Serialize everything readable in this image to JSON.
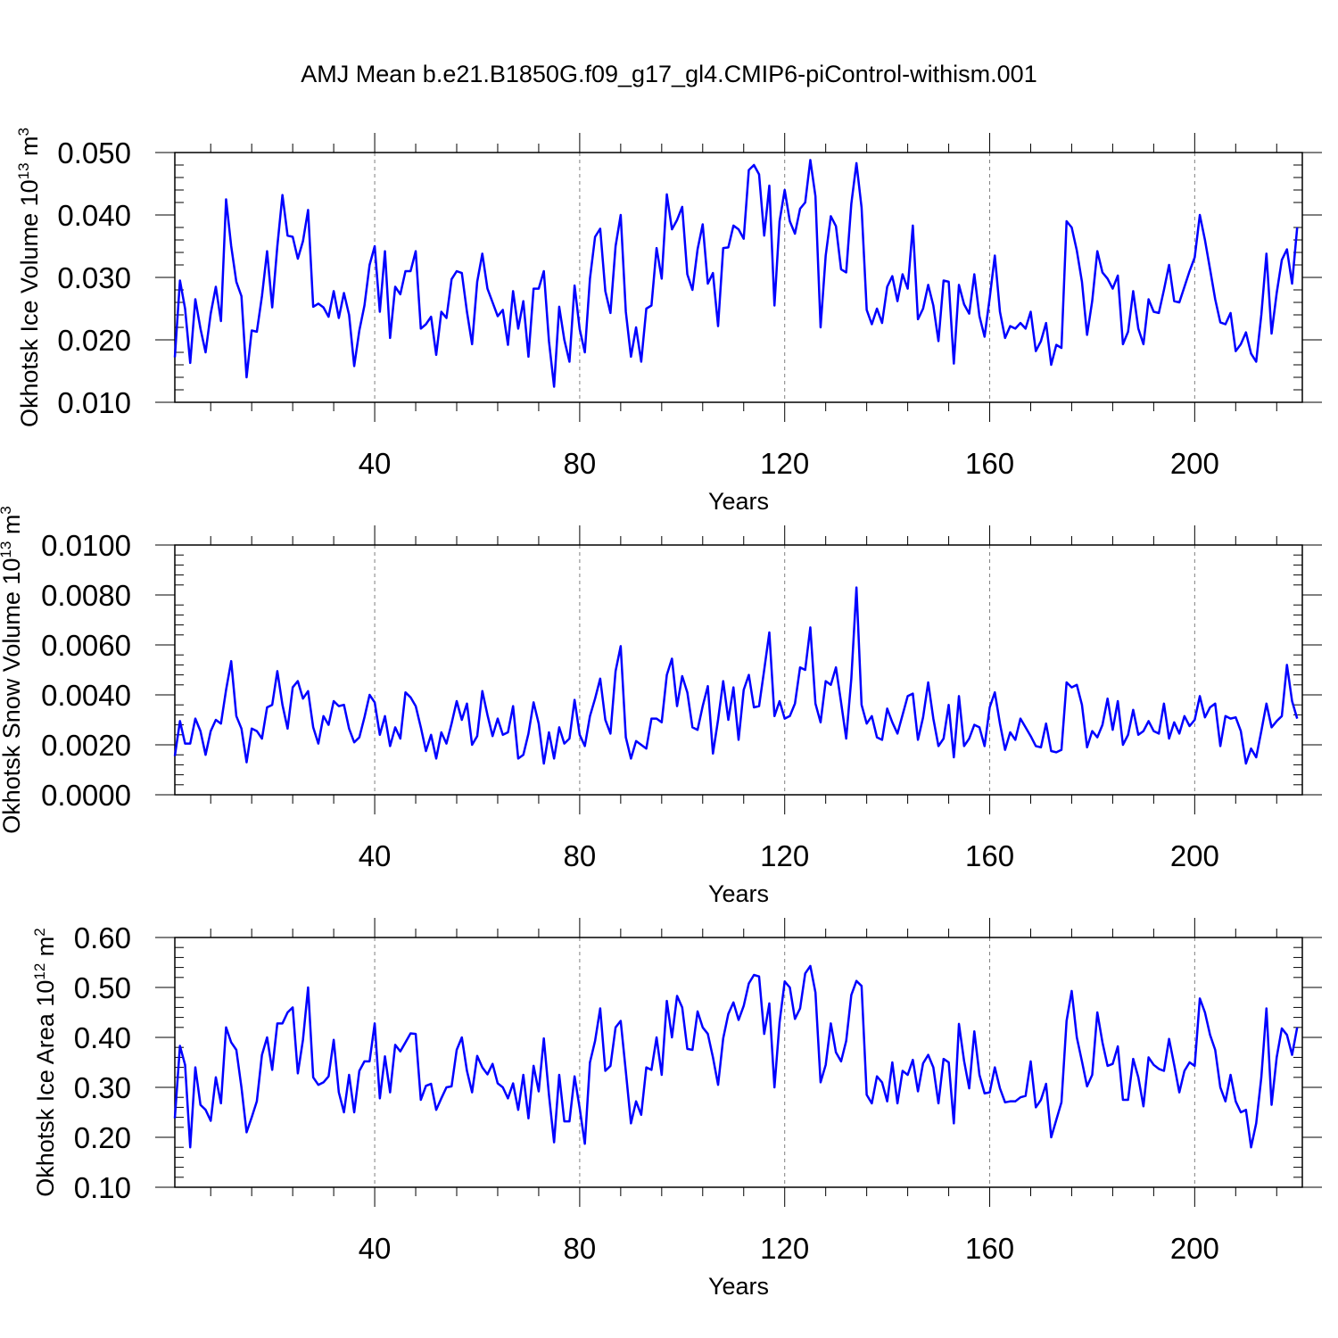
{
  "title": "AMJ Mean b.e21.B1850G.f09_g17_gl4.CMIP6-piControl-withism.001",
  "colors": {
    "line": "#0000ff",
    "axis": "#000000",
    "grid": "#808080"
  },
  "chart_data": [
    {
      "type": "line",
      "ylabel": "Okhotsk Ice Volume 10",
      "ylabel_sup": "13",
      "ylabel_unit": "m",
      "ylabel_unit_sup": "3",
      "xlabel": "Years",
      "xlim": [
        1,
        221
      ],
      "ylim": [
        0.01,
        0.05
      ],
      "xticks": [
        40,
        80,
        120,
        160,
        200
      ],
      "xtick_labels": [
        "40",
        "80",
        "120",
        "160",
        "200"
      ],
      "yticks": [
        0.01,
        0.02,
        0.03,
        0.04,
        0.05
      ],
      "ytick_labels": [
        "0.010",
        "0.020",
        "0.030",
        "0.040",
        "0.050"
      ],
      "x_start": 1,
      "values": [
        0.0172,
        0.0295,
        0.025,
        0.0163,
        0.0265,
        0.0218,
        0.018,
        0.0242,
        0.0285,
        0.023,
        0.0425,
        0.035,
        0.0293,
        0.027,
        0.014,
        0.0215,
        0.0213,
        0.027,
        0.0342,
        0.0252,
        0.035,
        0.0432,
        0.0367,
        0.0365,
        0.033,
        0.0358,
        0.0408,
        0.0253,
        0.0258,
        0.0252,
        0.0237,
        0.0278,
        0.0235,
        0.0275,
        0.024,
        0.0158,
        0.0215,
        0.0255,
        0.032,
        0.035,
        0.0245,
        0.0342,
        0.0203,
        0.0285,
        0.0273,
        0.031,
        0.031,
        0.0342,
        0.0218,
        0.0225,
        0.0237,
        0.0176,
        0.0245,
        0.0235,
        0.0297,
        0.031,
        0.0307,
        0.0245,
        0.0193,
        0.0293,
        0.0338,
        0.0282,
        0.026,
        0.0238,
        0.0248,
        0.0192,
        0.0278,
        0.0218,
        0.0262,
        0.0173,
        0.0282,
        0.0282,
        0.031,
        0.0198,
        0.0125,
        0.0253,
        0.02,
        0.0165,
        0.0287,
        0.0217,
        0.018,
        0.0298,
        0.0365,
        0.0378,
        0.0278,
        0.0243,
        0.035,
        0.04,
        0.0245,
        0.0173,
        0.022,
        0.0165,
        0.025,
        0.0255,
        0.0347,
        0.0298,
        0.0433,
        0.0377,
        0.0392,
        0.0413,
        0.0305,
        0.028,
        0.0345,
        0.0385,
        0.029,
        0.0307,
        0.0222,
        0.0347,
        0.0348,
        0.0383,
        0.0377,
        0.0362,
        0.0472,
        0.048,
        0.0465,
        0.0367,
        0.0447,
        0.0255,
        0.039,
        0.044,
        0.039,
        0.037,
        0.041,
        0.042,
        0.0488,
        0.043,
        0.022,
        0.0335,
        0.0398,
        0.0382,
        0.0313,
        0.0308,
        0.0418,
        0.0483,
        0.0412,
        0.0248,
        0.0225,
        0.025,
        0.0227,
        0.0285,
        0.0302,
        0.0262,
        0.0305,
        0.0282,
        0.0383,
        0.0233,
        0.025,
        0.0288,
        0.0255,
        0.0198,
        0.0295,
        0.0293,
        0.0162,
        0.0288,
        0.0257,
        0.0242,
        0.0305,
        0.0238,
        0.0205,
        0.0267,
        0.0335,
        0.0245,
        0.0203,
        0.0222,
        0.0218,
        0.0227,
        0.0218,
        0.0245,
        0.0182,
        0.0198,
        0.0227,
        0.016,
        0.0192,
        0.0187,
        0.039,
        0.038,
        0.0343,
        0.0293,
        0.0208,
        0.0262,
        0.0342,
        0.0308,
        0.0298,
        0.0282,
        0.0303,
        0.0193,
        0.0213,
        0.0278,
        0.0218,
        0.0193,
        0.0265,
        0.0245,
        0.0243,
        0.028,
        0.032,
        0.0262,
        0.026,
        0.0285,
        0.031,
        0.0332,
        0.04,
        0.036,
        0.0313,
        0.0265,
        0.0228,
        0.0225,
        0.0243,
        0.0182,
        0.0193,
        0.0212,
        0.0178,
        0.0165,
        0.024,
        0.0338,
        0.021,
        0.0275,
        0.0328,
        0.0345,
        0.029,
        0.038
      ]
    },
    {
      "type": "line",
      "ylabel": "Okhotsk Snow Volume 10",
      "ylabel_sup": "13",
      "ylabel_unit": "m",
      "ylabel_unit_sup": "3",
      "xlabel": "Years",
      "xlim": [
        1,
        221
      ],
      "ylim": [
        0.0,
        0.01
      ],
      "xticks": [
        40,
        80,
        120,
        160,
        200
      ],
      "xtick_labels": [
        "40",
        "80",
        "120",
        "160",
        "200"
      ],
      "yticks": [
        0.0,
        0.002,
        0.004,
        0.006,
        0.008,
        0.01
      ],
      "ytick_labels": [
        "0.0000",
        "0.0020",
        "0.0040",
        "0.0060",
        "0.0080",
        "0.0100"
      ],
      "x_start": 1,
      "values": [
        0.00155,
        0.00295,
        0.00205,
        0.00205,
        0.00305,
        0.00255,
        0.0016,
        0.00255,
        0.003,
        0.00285,
        0.0042,
        0.00535,
        0.00315,
        0.00265,
        0.0013,
        0.00265,
        0.00255,
        0.00225,
        0.0035,
        0.0036,
        0.00495,
        0.0036,
        0.00265,
        0.0043,
        0.00455,
        0.00385,
        0.00415,
        0.0027,
        0.00205,
        0.00315,
        0.0028,
        0.00375,
        0.00355,
        0.0036,
        0.00265,
        0.0021,
        0.0023,
        0.0031,
        0.004,
        0.0037,
        0.0024,
        0.00315,
        0.00195,
        0.0027,
        0.00225,
        0.0041,
        0.0039,
        0.00355,
        0.0027,
        0.00175,
        0.0024,
        0.00145,
        0.0025,
        0.00205,
        0.00285,
        0.00375,
        0.003,
        0.00365,
        0.002,
        0.00235,
        0.00415,
        0.0032,
        0.00235,
        0.00305,
        0.0024,
        0.0025,
        0.00355,
        0.00145,
        0.0016,
        0.00245,
        0.0037,
        0.00285,
        0.00125,
        0.0025,
        0.00145,
        0.0027,
        0.00205,
        0.00225,
        0.0038,
        0.0024,
        0.00195,
        0.00315,
        0.00385,
        0.00465,
        0.003,
        0.00245,
        0.00495,
        0.00595,
        0.0023,
        0.00145,
        0.00215,
        0.002,
        0.00185,
        0.00305,
        0.00305,
        0.0029,
        0.0048,
        0.00545,
        0.00355,
        0.00475,
        0.0041,
        0.0027,
        0.0026,
        0.00355,
        0.00435,
        0.00165,
        0.003,
        0.00455,
        0.003,
        0.0043,
        0.0022,
        0.0042,
        0.0048,
        0.0035,
        0.00355,
        0.005,
        0.0065,
        0.00315,
        0.00375,
        0.00305,
        0.00315,
        0.00365,
        0.0051,
        0.005,
        0.0067,
        0.00365,
        0.0029,
        0.00455,
        0.0044,
        0.0051,
        0.0037,
        0.00225,
        0.00465,
        0.0083,
        0.0036,
        0.00285,
        0.00315,
        0.0023,
        0.0022,
        0.00345,
        0.0029,
        0.00245,
        0.0032,
        0.00395,
        0.00405,
        0.0022,
        0.0031,
        0.0045,
        0.00305,
        0.00195,
        0.00225,
        0.0036,
        0.0015,
        0.00395,
        0.00195,
        0.00225,
        0.0028,
        0.0027,
        0.00195,
        0.0035,
        0.0041,
        0.00285,
        0.0018,
        0.0025,
        0.0022,
        0.00305,
        0.0027,
        0.00235,
        0.00195,
        0.0019,
        0.00285,
        0.00175,
        0.0017,
        0.0018,
        0.0045,
        0.0043,
        0.0044,
        0.0036,
        0.0019,
        0.00255,
        0.0023,
        0.0028,
        0.00385,
        0.0026,
        0.00375,
        0.002,
        0.0024,
        0.0034,
        0.0024,
        0.00255,
        0.00295,
        0.00255,
        0.00245,
        0.00365,
        0.00225,
        0.0029,
        0.00245,
        0.00315,
        0.00275,
        0.003,
        0.00395,
        0.0031,
        0.0035,
        0.00365,
        0.00195,
        0.00315,
        0.00305,
        0.0031,
        0.00255,
        0.00125,
        0.00185,
        0.0015,
        0.00255,
        0.00365,
        0.0027,
        0.00295,
        0.00315,
        0.0052,
        0.00375,
        0.00305
      ]
    },
    {
      "type": "line",
      "ylabel": "Okhotsk Ice Area 10",
      "ylabel_sup": "12",
      "ylabel_unit": "m",
      "ylabel_unit_sup": "2",
      "xlabel": "Years",
      "xlim": [
        1,
        221
      ],
      "ylim": [
        0.1,
        0.6
      ],
      "xticks": [
        40,
        80,
        120,
        160,
        200
      ],
      "xtick_labels": [
        "40",
        "80",
        "120",
        "160",
        "200"
      ],
      "yticks": [
        0.1,
        0.2,
        0.3,
        0.4,
        0.5,
        0.6
      ],
      "ytick_labels": [
        "0.10",
        "0.20",
        "0.30",
        "0.40",
        "0.50",
        "0.60"
      ],
      "x_start": 1,
      "values": [
        0.238,
        0.383,
        0.345,
        0.18,
        0.34,
        0.265,
        0.255,
        0.233,
        0.32,
        0.268,
        0.42,
        0.39,
        0.375,
        0.3,
        0.21,
        0.24,
        0.272,
        0.365,
        0.4,
        0.335,
        0.428,
        0.428,
        0.45,
        0.46,
        0.328,
        0.395,
        0.5,
        0.32,
        0.305,
        0.31,
        0.322,
        0.395,
        0.29,
        0.25,
        0.325,
        0.25,
        0.333,
        0.352,
        0.352,
        0.428,
        0.278,
        0.362,
        0.29,
        0.385,
        0.372,
        0.39,
        0.408,
        0.407,
        0.275,
        0.303,
        0.307,
        0.255,
        0.278,
        0.3,
        0.302,
        0.375,
        0.4,
        0.333,
        0.29,
        0.363,
        0.34,
        0.326,
        0.347,
        0.308,
        0.3,
        0.278,
        0.308,
        0.255,
        0.325,
        0.238,
        0.343,
        0.292,
        0.398,
        0.285,
        0.19,
        0.325,
        0.232,
        0.232,
        0.322,
        0.258,
        0.187,
        0.35,
        0.393,
        0.458,
        0.333,
        0.343,
        0.42,
        0.433,
        0.332,
        0.228,
        0.272,
        0.245,
        0.34,
        0.335,
        0.4,
        0.325,
        0.473,
        0.4,
        0.483,
        0.46,
        0.377,
        0.375,
        0.452,
        0.42,
        0.407,
        0.36,
        0.305,
        0.398,
        0.447,
        0.47,
        0.435,
        0.463,
        0.508,
        0.525,
        0.522,
        0.407,
        0.468,
        0.3,
        0.43,
        0.512,
        0.5,
        0.437,
        0.458,
        0.528,
        0.543,
        0.49,
        0.31,
        0.345,
        0.428,
        0.37,
        0.352,
        0.393,
        0.485,
        0.513,
        0.503,
        0.285,
        0.268,
        0.322,
        0.31,
        0.272,
        0.35,
        0.268,
        0.333,
        0.325,
        0.355,
        0.292,
        0.348,
        0.365,
        0.34,
        0.268,
        0.357,
        0.35,
        0.228,
        0.427,
        0.353,
        0.298,
        0.412,
        0.325,
        0.288,
        0.29,
        0.34,
        0.298,
        0.27,
        0.272,
        0.272,
        0.28,
        0.283,
        0.352,
        0.26,
        0.275,
        0.307,
        0.2,
        0.235,
        0.27,
        0.433,
        0.493,
        0.4,
        0.352,
        0.302,
        0.325,
        0.45,
        0.39,
        0.343,
        0.347,
        0.382,
        0.275,
        0.275,
        0.357,
        0.32,
        0.262,
        0.36,
        0.345,
        0.337,
        0.333,
        0.397,
        0.345,
        0.29,
        0.333,
        0.35,
        0.343,
        0.478,
        0.45,
        0.405,
        0.375,
        0.3,
        0.272,
        0.325,
        0.272,
        0.25,
        0.255,
        0.18,
        0.228,
        0.32,
        0.458,
        0.265,
        0.36,
        0.418,
        0.405,
        0.365,
        0.42
      ]
    }
  ]
}
